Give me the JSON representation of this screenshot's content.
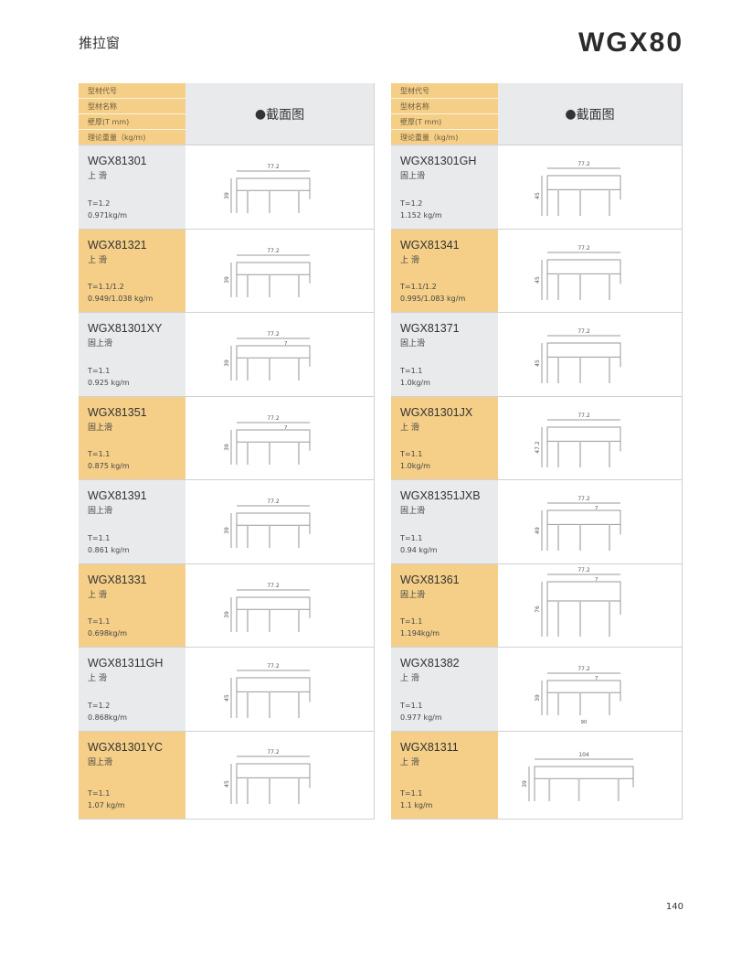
{
  "header": {
    "section_title": "推拉窗",
    "series": "WGX80",
    "page_number": "140"
  },
  "table_header": {
    "labels": [
      "型材代号",
      "型材名称",
      "壁厚(T mm)",
      "理论重量（kg/m)"
    ],
    "caption": "截面图"
  },
  "colors": {
    "yellow": "#f5cf88",
    "gray": "#e9eaec"
  },
  "columns": [
    [
      {
        "code": "WGX81301",
        "name": "上 滑",
        "thickness": "T=1.2",
        "weight": "0.971kg/m",
        "dims": [
          "77.2",
          "39"
        ]
      },
      {
        "code": "WGX81321",
        "name": "上 滑",
        "thickness": "T=1.1/1.2",
        "weight": "0.949/1.038 kg/m",
        "dims": [
          "77.2",
          "39"
        ]
      },
      {
        "code": "WGX81301XY",
        "name": "固上滑",
        "thickness": "T=1.1",
        "weight": "0.925 kg/m",
        "dims": [
          "77.2",
          "39",
          "7"
        ]
      },
      {
        "code": "WGX81351",
        "name": "固上滑",
        "thickness": "T=1.1",
        "weight": "0.875 kg/m",
        "dims": [
          "77.2",
          "39",
          "7"
        ]
      },
      {
        "code": "WGX81391",
        "name": "固上滑",
        "thickness": "T=1.1",
        "weight": "0.861 kg/m",
        "dims": [
          "77.2",
          "39"
        ]
      },
      {
        "code": "WGX81331",
        "name": "上 滑",
        "thickness": "T=1.1",
        "weight": "0.698kg/m",
        "dims": [
          "77.2",
          "39"
        ]
      },
      {
        "code": "WGX81311GH",
        "name": "上 滑",
        "thickness": "T=1.2",
        "weight": "0.868kg/m",
        "dims": [
          "77.2",
          "45"
        ]
      },
      {
        "code": "WGX81301YC",
        "name": "固上滑",
        "thickness": "T=1.1",
        "weight": "1.07 kg/m",
        "dims": [
          "77.2",
          "45"
        ]
      }
    ],
    [
      {
        "code": "WGX81301GH",
        "name": "固上滑",
        "thickness": "T=1.2",
        "weight": "1.152 kg/m",
        "dims": [
          "77.2",
          "45"
        ]
      },
      {
        "code": "WGX81341",
        "name": "上 滑",
        "thickness": "T=1.1/1.2",
        "weight": "0.995/1.083 kg/m",
        "dims": [
          "77.2",
          "45"
        ]
      },
      {
        "code": "WGX81371",
        "name": "固上滑",
        "thickness": "T=1.1",
        "weight": "1.0kg/m",
        "dims": [
          "77.2",
          "45"
        ]
      },
      {
        "code": "WGX81301JX",
        "name": "上 滑",
        "thickness": "T=1.1",
        "weight": "1.0kg/m",
        "dims": [
          "77.2",
          "47.2"
        ]
      },
      {
        "code": "WGX81351JXB",
        "name": "固上滑",
        "thickness": "T=1.1",
        "weight": "0.94 kg/m",
        "dims": [
          "77.2",
          "49",
          "7"
        ]
      },
      {
        "code": "WGX81361",
        "name": "固上滑",
        "thickness": "T=1.1",
        "weight": "1.194kg/m",
        "dims": [
          "77.2",
          "76",
          "7"
        ]
      },
      {
        "code": "WGX81382",
        "name": "上 滑",
        "thickness": "T=1.1",
        "weight": "0.977 kg/m",
        "dims": [
          "77.2",
          "39",
          "7",
          "90"
        ]
      },
      {
        "code": "WGX81311",
        "name": "上 滑",
        "thickness": "T=1.1",
        "weight": "1.1 kg/m",
        "dims": [
          "104",
          "39"
        ]
      }
    ]
  ]
}
